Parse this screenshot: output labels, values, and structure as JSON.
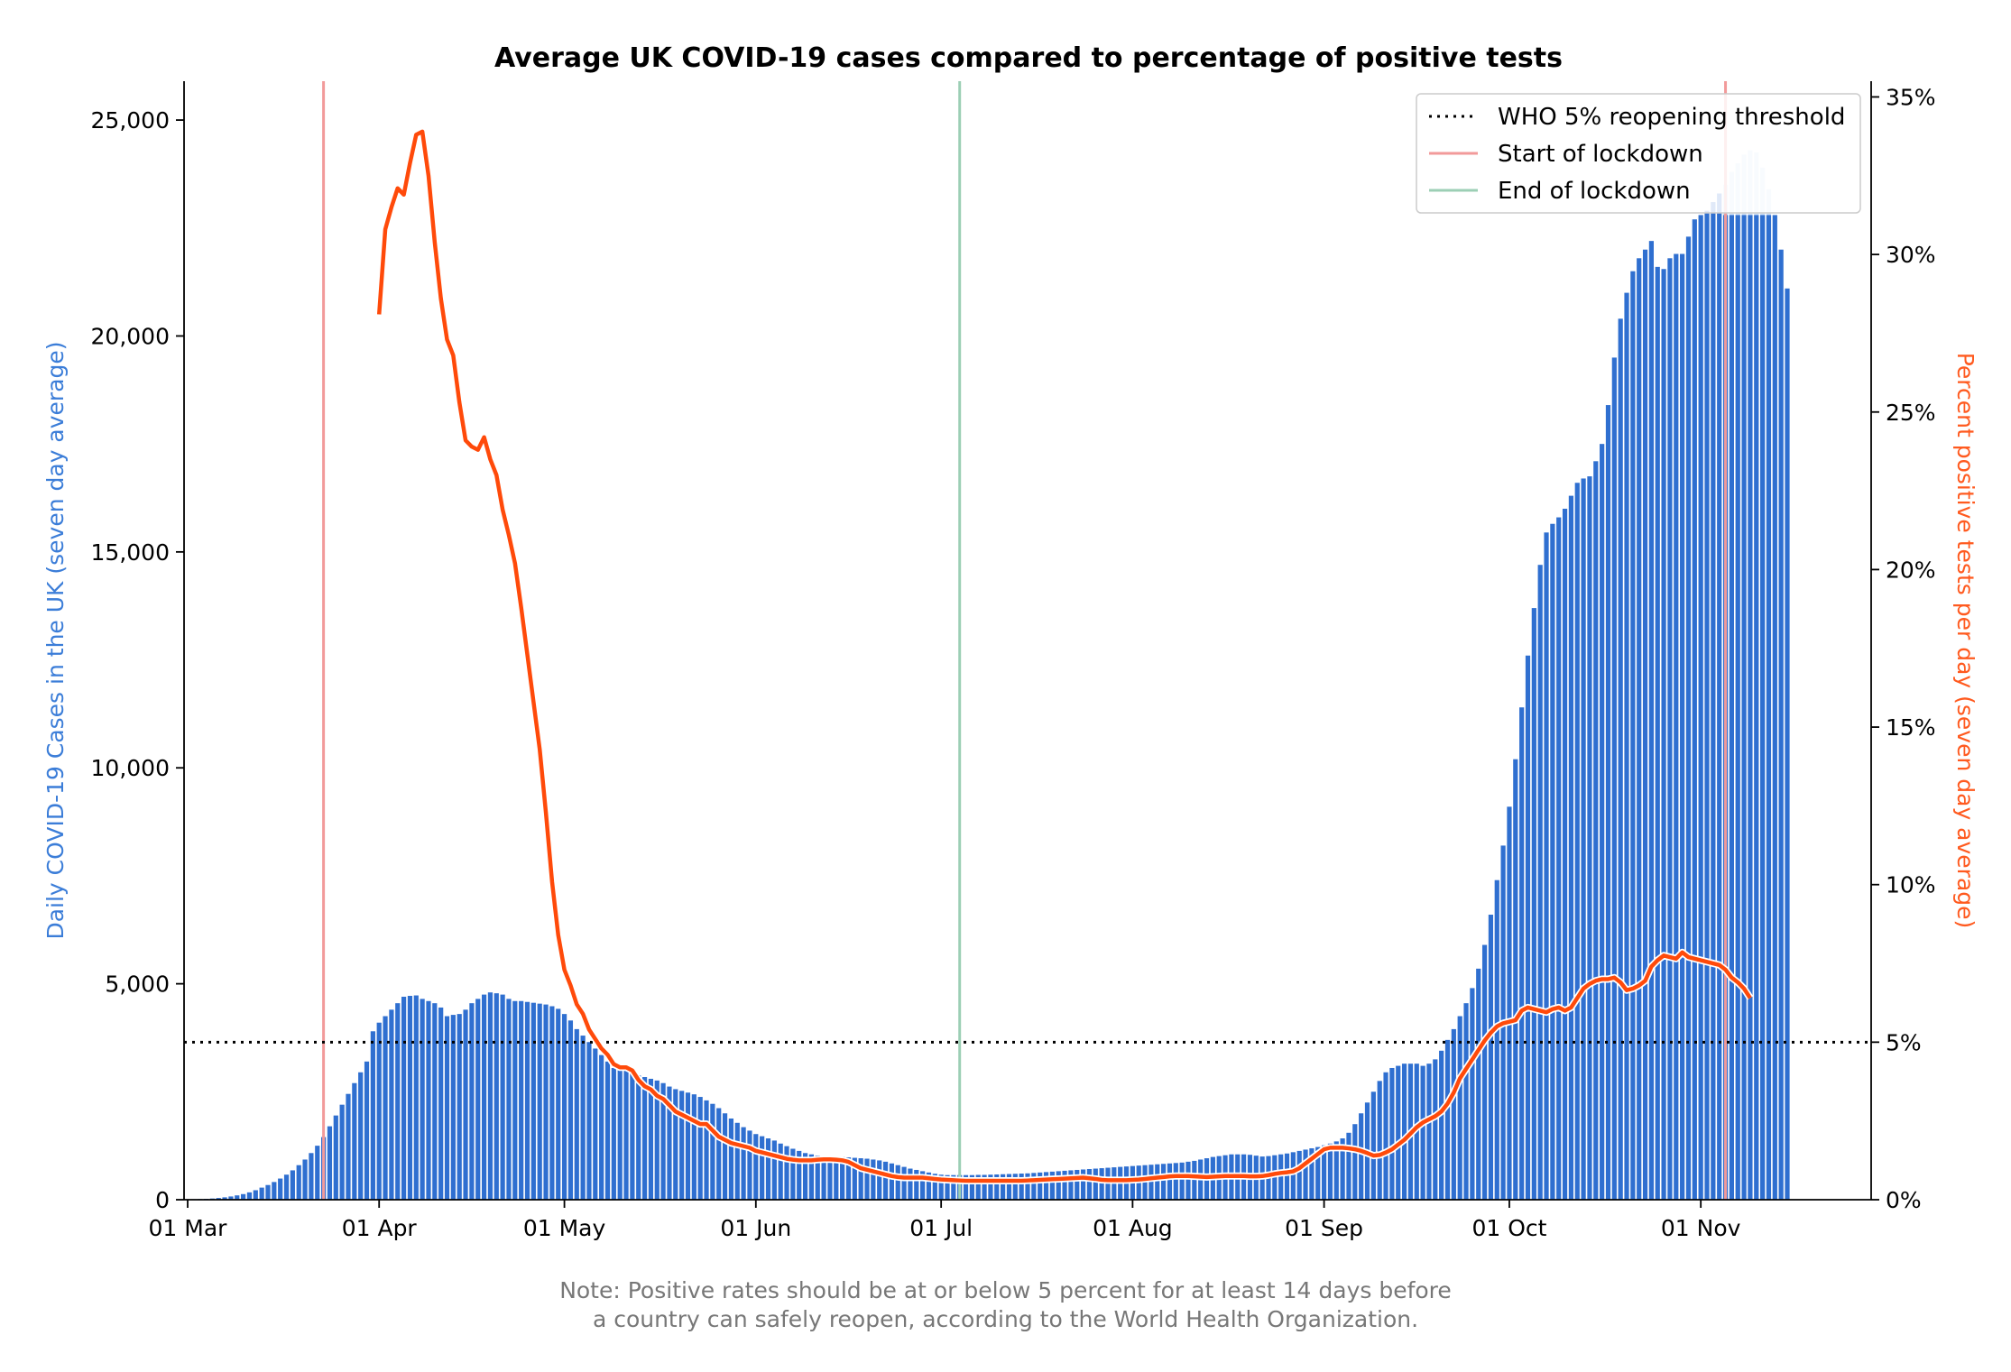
{
  "colors": {
    "bars": "#2f6fd0",
    "bars_light": "#cfe0f6",
    "positivity_line": "#ff4a0a",
    "lockdown_start": "#f29a9a",
    "lockdown_end": "#9ccfb5",
    "threshold": "#000000",
    "left_axis_label": "#3b7dd8",
    "right_axis_label": "#ff5a1f",
    "note": "#777777"
  },
  "chart_data": {
    "type": "bar",
    "title": "Average UK COVID-19 cases compared to percentage of positive tests",
    "ylabel_left": "Daily COVID-19 Cases in the UK (seven day average)",
    "ylabel_right": "Percent positive tests per day (seven day average)",
    "x_ticks": [
      "01 Mar",
      "01 Apr",
      "01 May",
      "01 Jun",
      "01 Jul",
      "01 Aug",
      "01 Sep",
      "01 Oct",
      "01 Nov"
    ],
    "x_start_date": "2020-03-01",
    "x_end_date": "2020-11-28",
    "y_left_ticks": [
      "0",
      "5,000",
      "10,000",
      "15,000",
      "20,000",
      "25,000"
    ],
    "y_left_range": [
      0,
      25900
    ],
    "y_right_ticks": [
      "0%",
      "5%",
      "10%",
      "15%",
      "20%",
      "25%",
      "30%",
      "35%"
    ],
    "y_right_range": [
      0,
      35.5
    ],
    "legend_position": "top-right",
    "legend": [
      {
        "label": "WHO 5% reopening threshold",
        "style": "dotted-black"
      },
      {
        "label": "Start of lockdown",
        "style": "solid-pink"
      },
      {
        "label": "End of lockdown",
        "style": "solid-green"
      }
    ],
    "reference_lines": {
      "threshold_percent": 5,
      "lockdown_start_date": "2020-03-23",
      "lockdown_end_date": "2020-07-04",
      "second_lockdown_date": "2020-11-05"
    },
    "cases_series": {
      "name": "Daily COVID-19 Cases in the UK (seven day average)",
      "start_date": "2020-03-01",
      "values": [
        10,
        12,
        15,
        20,
        28,
        40,
        55,
        75,
        100,
        130,
        170,
        220,
        280,
        340,
        410,
        490,
        580,
        680,
        800,
        930,
        1080,
        1250,
        1450,
        1700,
        1950,
        2200,
        2450,
        2700,
        2950,
        3200,
        3900,
        4100,
        4250,
        4400,
        4550,
        4700,
        4720,
        4730,
        4650,
        4600,
        4550,
        4450,
        4250,
        4280,
        4300,
        4400,
        4550,
        4650,
        4750,
        4800,
        4780,
        4750,
        4650,
        4600,
        4600,
        4580,
        4560,
        4540,
        4520,
        4480,
        4420,
        4300,
        4150,
        3950,
        3800,
        3650,
        3500,
        3350,
        3200,
        3050,
        3000,
        3000,
        2950,
        2880,
        2840,
        2800,
        2760,
        2700,
        2620,
        2560,
        2520,
        2480,
        2440,
        2380,
        2300,
        2220,
        2120,
        2000,
        1880,
        1780,
        1680,
        1600,
        1520,
        1470,
        1420,
        1370,
        1300,
        1240,
        1180,
        1130,
        1080,
        1050,
        1020,
        1000,
        990,
        990,
        990,
        980,
        970,
        960,
        950,
        930,
        910,
        880,
        840,
        800,
        760,
        720,
        690,
        660,
        630,
        600,
        580,
        570,
        570,
        570,
        570,
        570,
        575,
        575,
        580,
        585,
        590,
        595,
        600,
        605,
        610,
        620,
        630,
        640,
        650,
        660,
        670,
        680,
        690,
        700,
        710,
        720,
        730,
        740,
        750,
        760,
        770,
        780,
        790,
        800,
        810,
        820,
        830,
        840,
        850,
        860,
        880,
        900,
        930,
        960,
        990,
        1010,
        1030,
        1050,
        1050,
        1050,
        1040,
        1020,
        1000,
        1010,
        1030,
        1050,
        1070,
        1100,
        1130,
        1160,
        1190,
        1220,
        1260,
        1300,
        1350,
        1420,
        1550,
        1750,
        2000,
        2250,
        2500,
        2750,
        2950,
        3050,
        3100,
        3150,
        3150,
        3150,
        3100,
        3150,
        3250,
        3450,
        3700,
        3950,
        4250,
        4550,
        4900,
        5350,
        5900,
        6600,
        7400,
        8200,
        9100,
        10200,
        11400,
        12600,
        13700,
        14700,
        15450,
        15650,
        15800,
        16000,
        16300,
        16600,
        16700,
        16750,
        17100,
        17500,
        18400,
        19500,
        20400,
        21000,
        21500,
        21800,
        22000,
        22200,
        21600,
        21550,
        21800,
        21900,
        21900,
        22300,
        22700,
        22800,
        22900,
        23100,
        23300,
        23500,
        23800,
        24000,
        24200,
        24300,
        24250,
        23900,
        23400,
        22800,
        22000,
        21100
      ]
    },
    "positivity_series": {
      "name": "Percent positive tests per day (seven day average)",
      "start_date": "2020-04-01",
      "values": [
        28.1,
        30.8,
        31.5,
        32.1,
        31.9,
        32.9,
        33.8,
        33.9,
        32.5,
        30.4,
        28.6,
        27.3,
        26.8,
        25.3,
        24.1,
        23.9,
        23.8,
        24.2,
        23.5,
        23.0,
        21.9,
        21.1,
        20.2,
        18.8,
        17.3,
        15.8,
        14.3,
        12.3,
        10.1,
        8.4,
        7.3,
        6.8,
        6.2,
        5.9,
        5.4,
        5.1,
        4.8,
        4.6,
        4.3,
        4.2,
        4.2,
        4.1,
        3.8,
        3.6,
        3.5,
        3.3,
        3.2,
        3.0,
        2.8,
        2.7,
        2.6,
        2.5,
        2.4,
        2.4,
        2.2,
        2.0,
        1.9,
        1.8,
        1.75,
        1.7,
        1.65,
        1.55,
        1.5,
        1.45,
        1.4,
        1.35,
        1.3,
        1.27,
        1.25,
        1.25,
        1.25,
        1.27,
        1.28,
        1.28,
        1.27,
        1.25,
        1.2,
        1.1,
        1.0,
        0.95,
        0.9,
        0.85,
        0.8,
        0.75,
        0.72,
        0.7,
        0.7,
        0.7,
        0.7,
        0.68,
        0.66,
        0.64,
        0.63,
        0.62,
        0.61,
        0.6,
        0.6,
        0.6,
        0.6,
        0.6,
        0.6,
        0.6,
        0.6,
        0.6,
        0.6,
        0.61,
        0.62,
        0.63,
        0.64,
        0.65,
        0.66,
        0.67,
        0.68,
        0.69,
        0.7,
        0.68,
        0.66,
        0.63,
        0.62,
        0.62,
        0.62,
        0.62,
        0.63,
        0.64,
        0.66,
        0.68,
        0.7,
        0.72,
        0.74,
        0.75,
        0.75,
        0.75,
        0.74,
        0.73,
        0.72,
        0.73,
        0.74,
        0.75,
        0.75,
        0.75,
        0.75,
        0.74,
        0.74,
        0.75,
        0.78,
        0.82,
        0.85,
        0.87,
        0.9,
        1.0,
        1.15,
        1.3,
        1.45,
        1.6,
        1.65,
        1.65,
        1.65,
        1.63,
        1.6,
        1.55,
        1.48,
        1.4,
        1.42,
        1.5,
        1.6,
        1.75,
        1.9,
        2.1,
        2.3,
        2.45,
        2.55,
        2.65,
        2.8,
        3.05,
        3.4,
        3.85,
        4.15,
        4.45,
        4.75,
        5.05,
        5.3,
        5.5,
        5.6,
        5.65,
        5.7,
        6.0,
        6.1,
        6.05,
        6.0,
        5.95,
        6.05,
        6.1,
        6.0,
        6.1,
        6.4,
        6.7,
        6.85,
        6.95,
        7.0,
        7.0,
        7.05,
        6.9,
        6.65,
        6.7,
        6.8,
        6.95,
        7.4,
        7.6,
        7.75,
        7.7,
        7.65,
        7.85,
        7.7,
        7.65,
        7.6,
        7.55,
        7.5,
        7.45,
        7.3,
        7.05,
        6.9,
        6.7,
        6.4
      ]
    }
  },
  "note": {
    "line1": "Note: Positive rates should be at or below 5 percent for at least 14 days before",
    "line2": "a country can safely reopen, according to the World Health Organization."
  }
}
